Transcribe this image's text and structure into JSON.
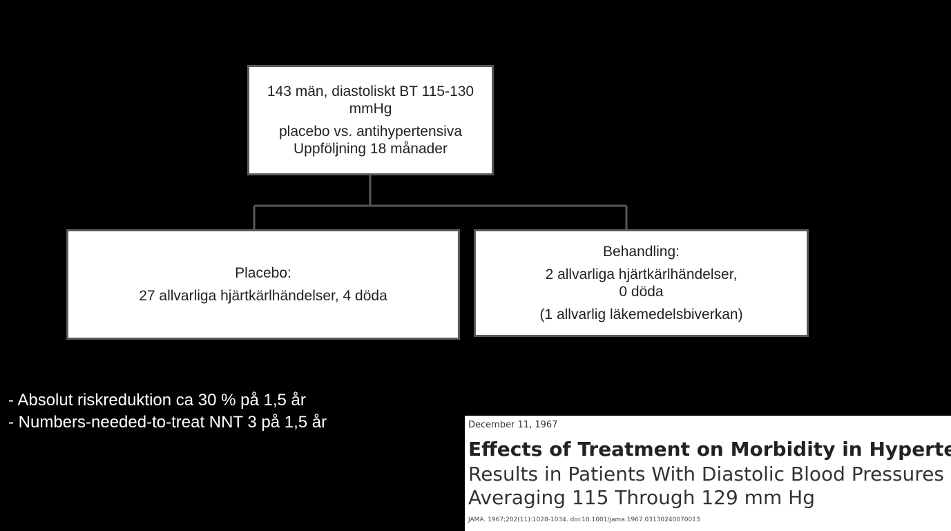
{
  "nodes": [
    {
      "lines": [
        "143 män, diastoliskt BT 115-130 mmHg",
        "placebo vs. antihypertensiva",
        "Uppföljning 18 månader"
      ]
    },
    {
      "lines": [
        "Placebo:",
        "27 allvarliga hjärtkärlhändelser, 4 döda"
      ]
    },
    {
      "lines": [
        "Behandling:",
        "2 allvarliga hjärtkärlhändelser,",
        "0 döda",
        "(1 allvarlig läkemedelsbiverkan)"
      ]
    }
  ],
  "bullets": [
    "- Absolut riskreduktion ca 30 % på 1,5 år",
    "- Numbers-needed-to-treat NNT 3 på 1,5 år"
  ],
  "citation": {
    "date": "December 11, 1967",
    "title": "Effects of Treatment on Morbidity in Hypertension",
    "subtitle": [
      "Results in Patients With Diastolic Blood Pressures",
      "Averaging 115 Through 129 mm Hg"
    ],
    "reference": "JAMA. 1967;202(11):1028-1034. doi:10.1001/jama.1967.03130240070013"
  }
}
